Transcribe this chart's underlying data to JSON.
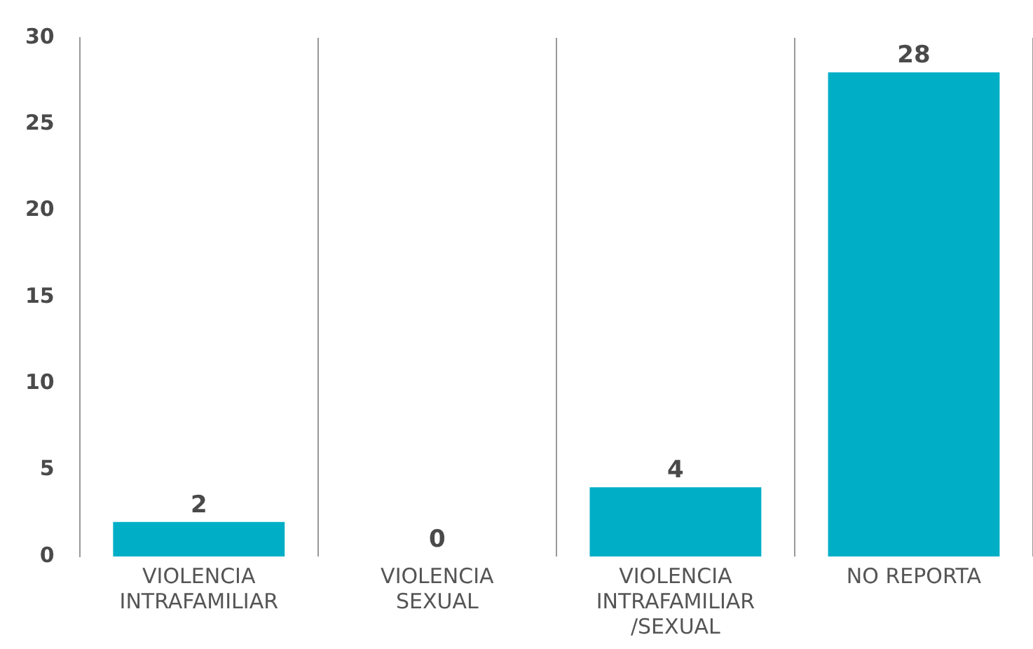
{
  "chart_data": {
    "type": "bar",
    "categories": [
      "VIOLENCIA INTRAFAMILIAR",
      "VIOLENCIA SEXUAL",
      "VIOLENCIA INTRAFAMILIAR /SEXUAL",
      "NO REPORTA"
    ],
    "values": [
      2,
      0,
      4,
      28
    ],
    "color": "#00afc6",
    "ylim": [
      0,
      30
    ],
    "yticks": [
      0,
      5,
      10,
      15,
      20,
      25,
      30
    ],
    "grid": "x",
    "data_labels": true,
    "legend": false
  }
}
